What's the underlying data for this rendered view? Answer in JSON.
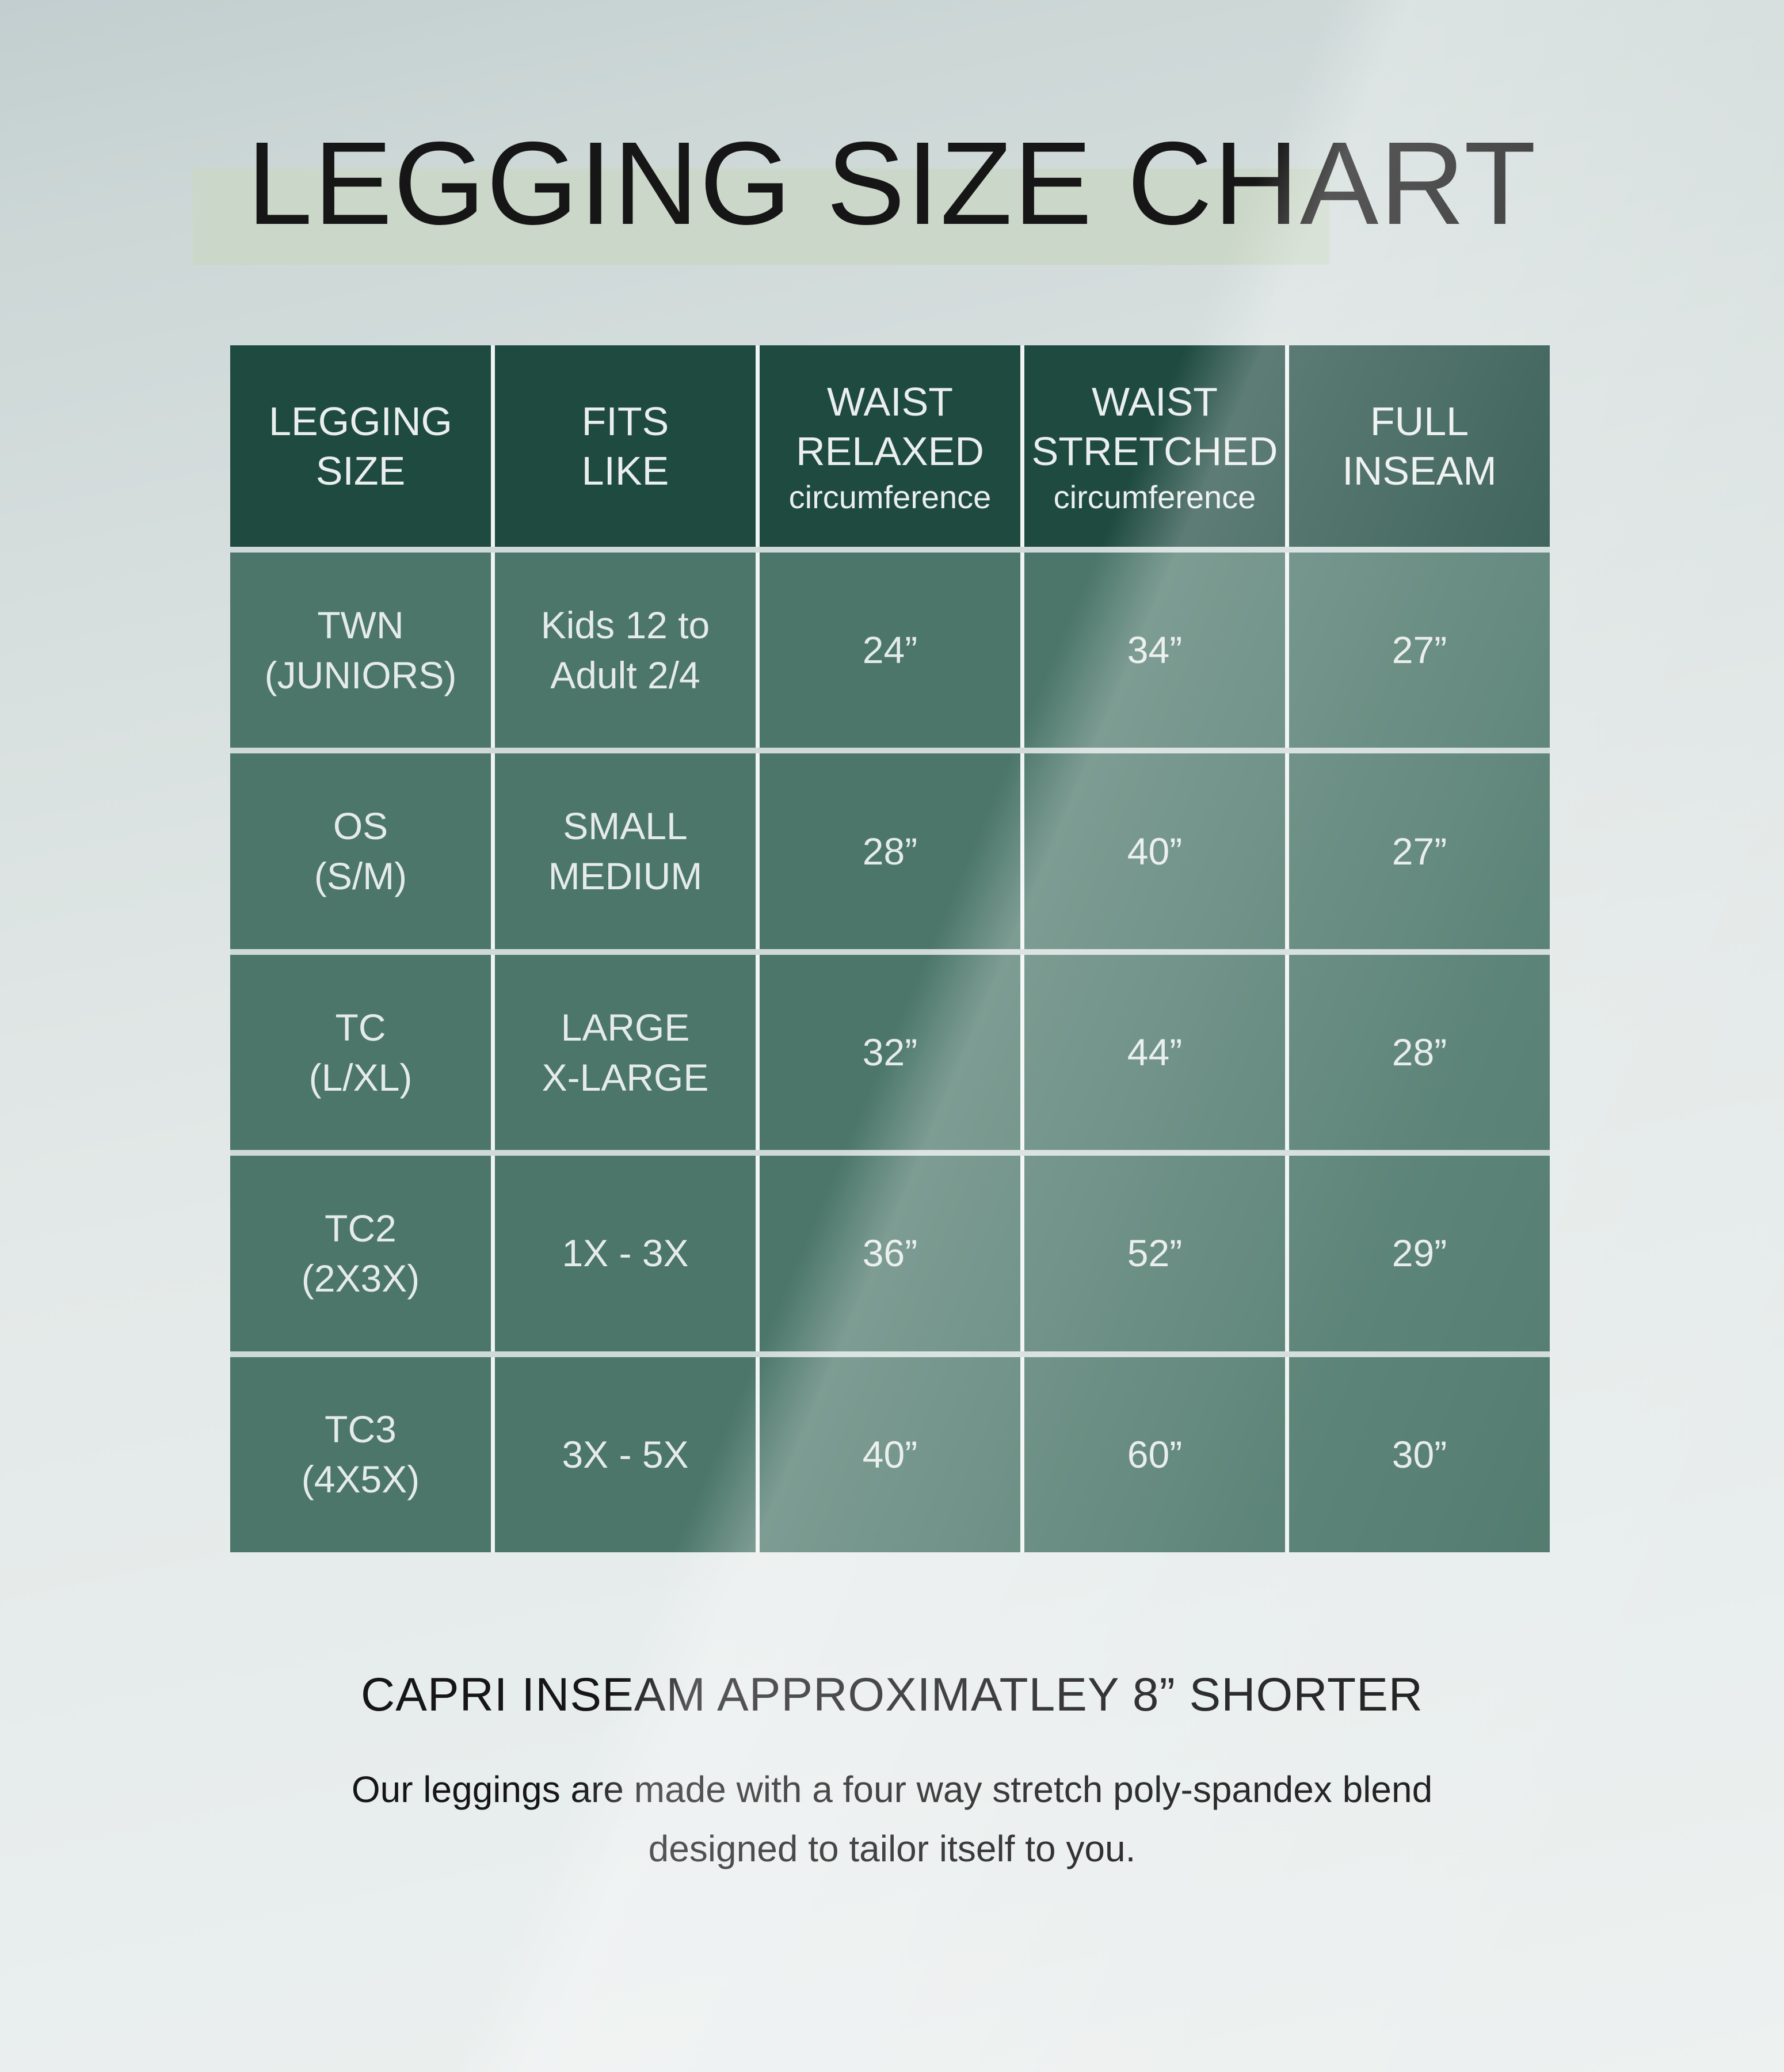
{
  "page": {
    "title": "LEGGING SIZE CHART",
    "footnote": "CAPRI INSEAM APPROXIMATLEY 8” SHORTER",
    "description": [
      "Our leggings are made with a four way stretch poly-spandex blend",
      "designed to tailor itself to you."
    ]
  },
  "table": {
    "headers": [
      {
        "lines": [
          "LEGGING",
          "SIZE"
        ],
        "sub": ""
      },
      {
        "lines": [
          "FITS",
          "LIKE"
        ],
        "sub": ""
      },
      {
        "lines": [
          "WAIST",
          "RELAXED"
        ],
        "sub": "circumference"
      },
      {
        "lines": [
          "WAIST",
          "STRETCHED"
        ],
        "sub": "circumference"
      },
      {
        "lines": [
          "FULL",
          "INSEAM"
        ],
        "sub": ""
      }
    ],
    "rows": [
      {
        "cells": [
          [
            "TWN",
            "(JUNIORS)"
          ],
          [
            "Kids 12 to",
            "Adult 2/4"
          ],
          [
            "24”"
          ],
          [
            "34”"
          ],
          [
            "27”"
          ]
        ]
      },
      {
        "cells": [
          [
            "OS",
            "(S/M)"
          ],
          [
            "SMALL",
            "MEDIUM"
          ],
          [
            "28”"
          ],
          [
            "40”"
          ],
          [
            "27”"
          ]
        ]
      },
      {
        "cells": [
          [
            "TC",
            "(L/XL)"
          ],
          [
            "LARGE",
            "X-LARGE"
          ],
          [
            "32”"
          ],
          [
            "44”"
          ],
          [
            "28”"
          ]
        ]
      },
      {
        "cells": [
          [
            "TC2",
            "(2X3X)"
          ],
          [
            "1X - 3X"
          ],
          [
            "36”"
          ],
          [
            "52”"
          ],
          [
            "29”"
          ]
        ]
      },
      {
        "cells": [
          [
            "TC3",
            "(4X5X)"
          ],
          [
            "3X - 5X"
          ],
          [
            "40”"
          ],
          [
            "60”"
          ],
          [
            "30”"
          ]
        ]
      }
    ]
  },
  "colors": {
    "header_bg": "#1e4a40",
    "cell_bg": "#4b7669",
    "grid_line": "#f0f4f3",
    "row_separator": "#cfdad8",
    "title_highlight": "#cbd7c8",
    "header_text": "#eaefed",
    "cell_text": "#e5ebe9",
    "dark_text": "#161616"
  }
}
